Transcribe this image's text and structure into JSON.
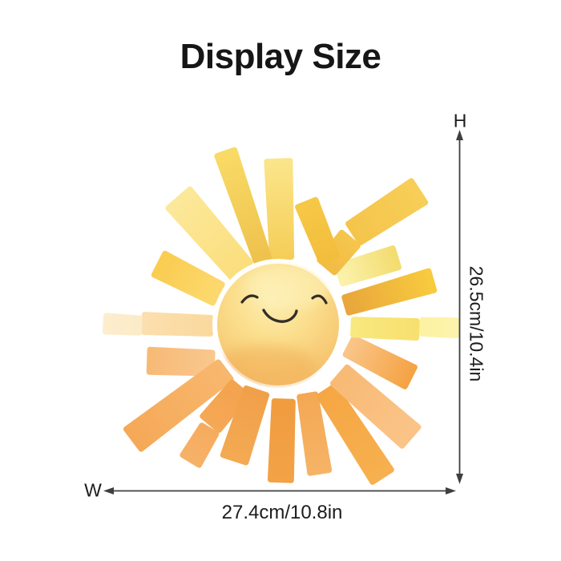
{
  "page": {
    "background": "#ffffff"
  },
  "header": {
    "title": "Display Size"
  },
  "dimension_diagram": {
    "height": {
      "label": "H",
      "value": "26.5cm/10.4in"
    },
    "width": {
      "label": "W",
      "value": "27.4cm/10.8in"
    },
    "line_color": "#3f3f3f",
    "text_color": "#1c1c1c"
  },
  "illustration": {
    "name": "watercolor-smiling-sun",
    "palette": {
      "core_light": "#FDEEB2",
      "core_mid": "#FBDE8C",
      "core_warm": "#F7C873",
      "core_deep": "#F0AE57",
      "ray_pale_lemon": "#FBF2AC",
      "ray_yellow": "#F6C94E",
      "ray_light_orange": "#F9BE7C",
      "ray_orange": "#F19E42",
      "face_stroke": "#332e28"
    }
  }
}
